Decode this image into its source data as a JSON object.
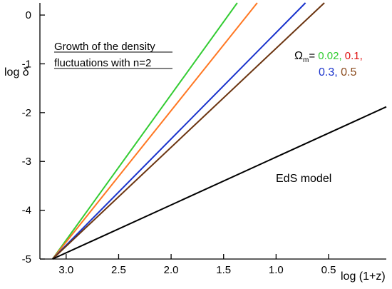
{
  "chart_data": {
    "type": "line",
    "title_lines": [
      "Growth of the density",
      "fluctuations  with n=2"
    ],
    "xlabel": "log (1+z)",
    "ylabel": "log δ",
    "xlim": [
      3.25,
      -0.05
    ],
    "ylim": [
      -5,
      0.25
    ],
    "x_ticks": [
      3.0,
      2.5,
      2.0,
      1.5,
      1.0,
      0.5
    ],
    "x_tick_labels": [
      "3.0",
      "2.5",
      "2.0",
      "1.5",
      "1.0",
      "0.5"
    ],
    "y_ticks": [
      0,
      -1,
      -2,
      -3,
      -4,
      -5
    ],
    "y_tick_labels": [
      "0",
      "-1",
      "-2",
      "-3",
      "-4",
      "-5"
    ],
    "grid": false,
    "legend": {
      "prefix": "Ω",
      "subscript": "m",
      "equals": "= ",
      "entries": [
        {
          "text": "0.02,",
          "color": "#2ecc2e"
        },
        {
          "text": "0.1,",
          "color": "#e01010"
        },
        {
          "text": "0.3,",
          "color": "#1a33cc"
        },
        {
          "text": "0.5",
          "color": "#8a4a1c"
        }
      ]
    },
    "annotation": "EdS model",
    "series": [
      {
        "values_label": "0.02",
        "color": "#33cc33",
        "x": [
          3.13,
          1.37
        ],
        "y": [
          -5.0,
          0.25
        ]
      },
      {
        "values_label": "0.1",
        "color": "#ff7722",
        "x": [
          3.13,
          1.18
        ],
        "y": [
          -5.0,
          0.25
        ]
      },
      {
        "values_label": "0.3",
        "color": "#1a33cc",
        "x": [
          3.13,
          0.72
        ],
        "y": [
          -5.0,
          0.25
        ]
      },
      {
        "values_label": "0.5",
        "color": "#6b3410",
        "x": [
          3.13,
          0.54
        ],
        "y": [
          -5.0,
          0.25
        ]
      },
      {
        "name": "EdS model",
        "color": "#000000",
        "x": [
          3.13,
          -0.05
        ],
        "y": [
          -5.0,
          -1.88
        ]
      }
    ]
  }
}
